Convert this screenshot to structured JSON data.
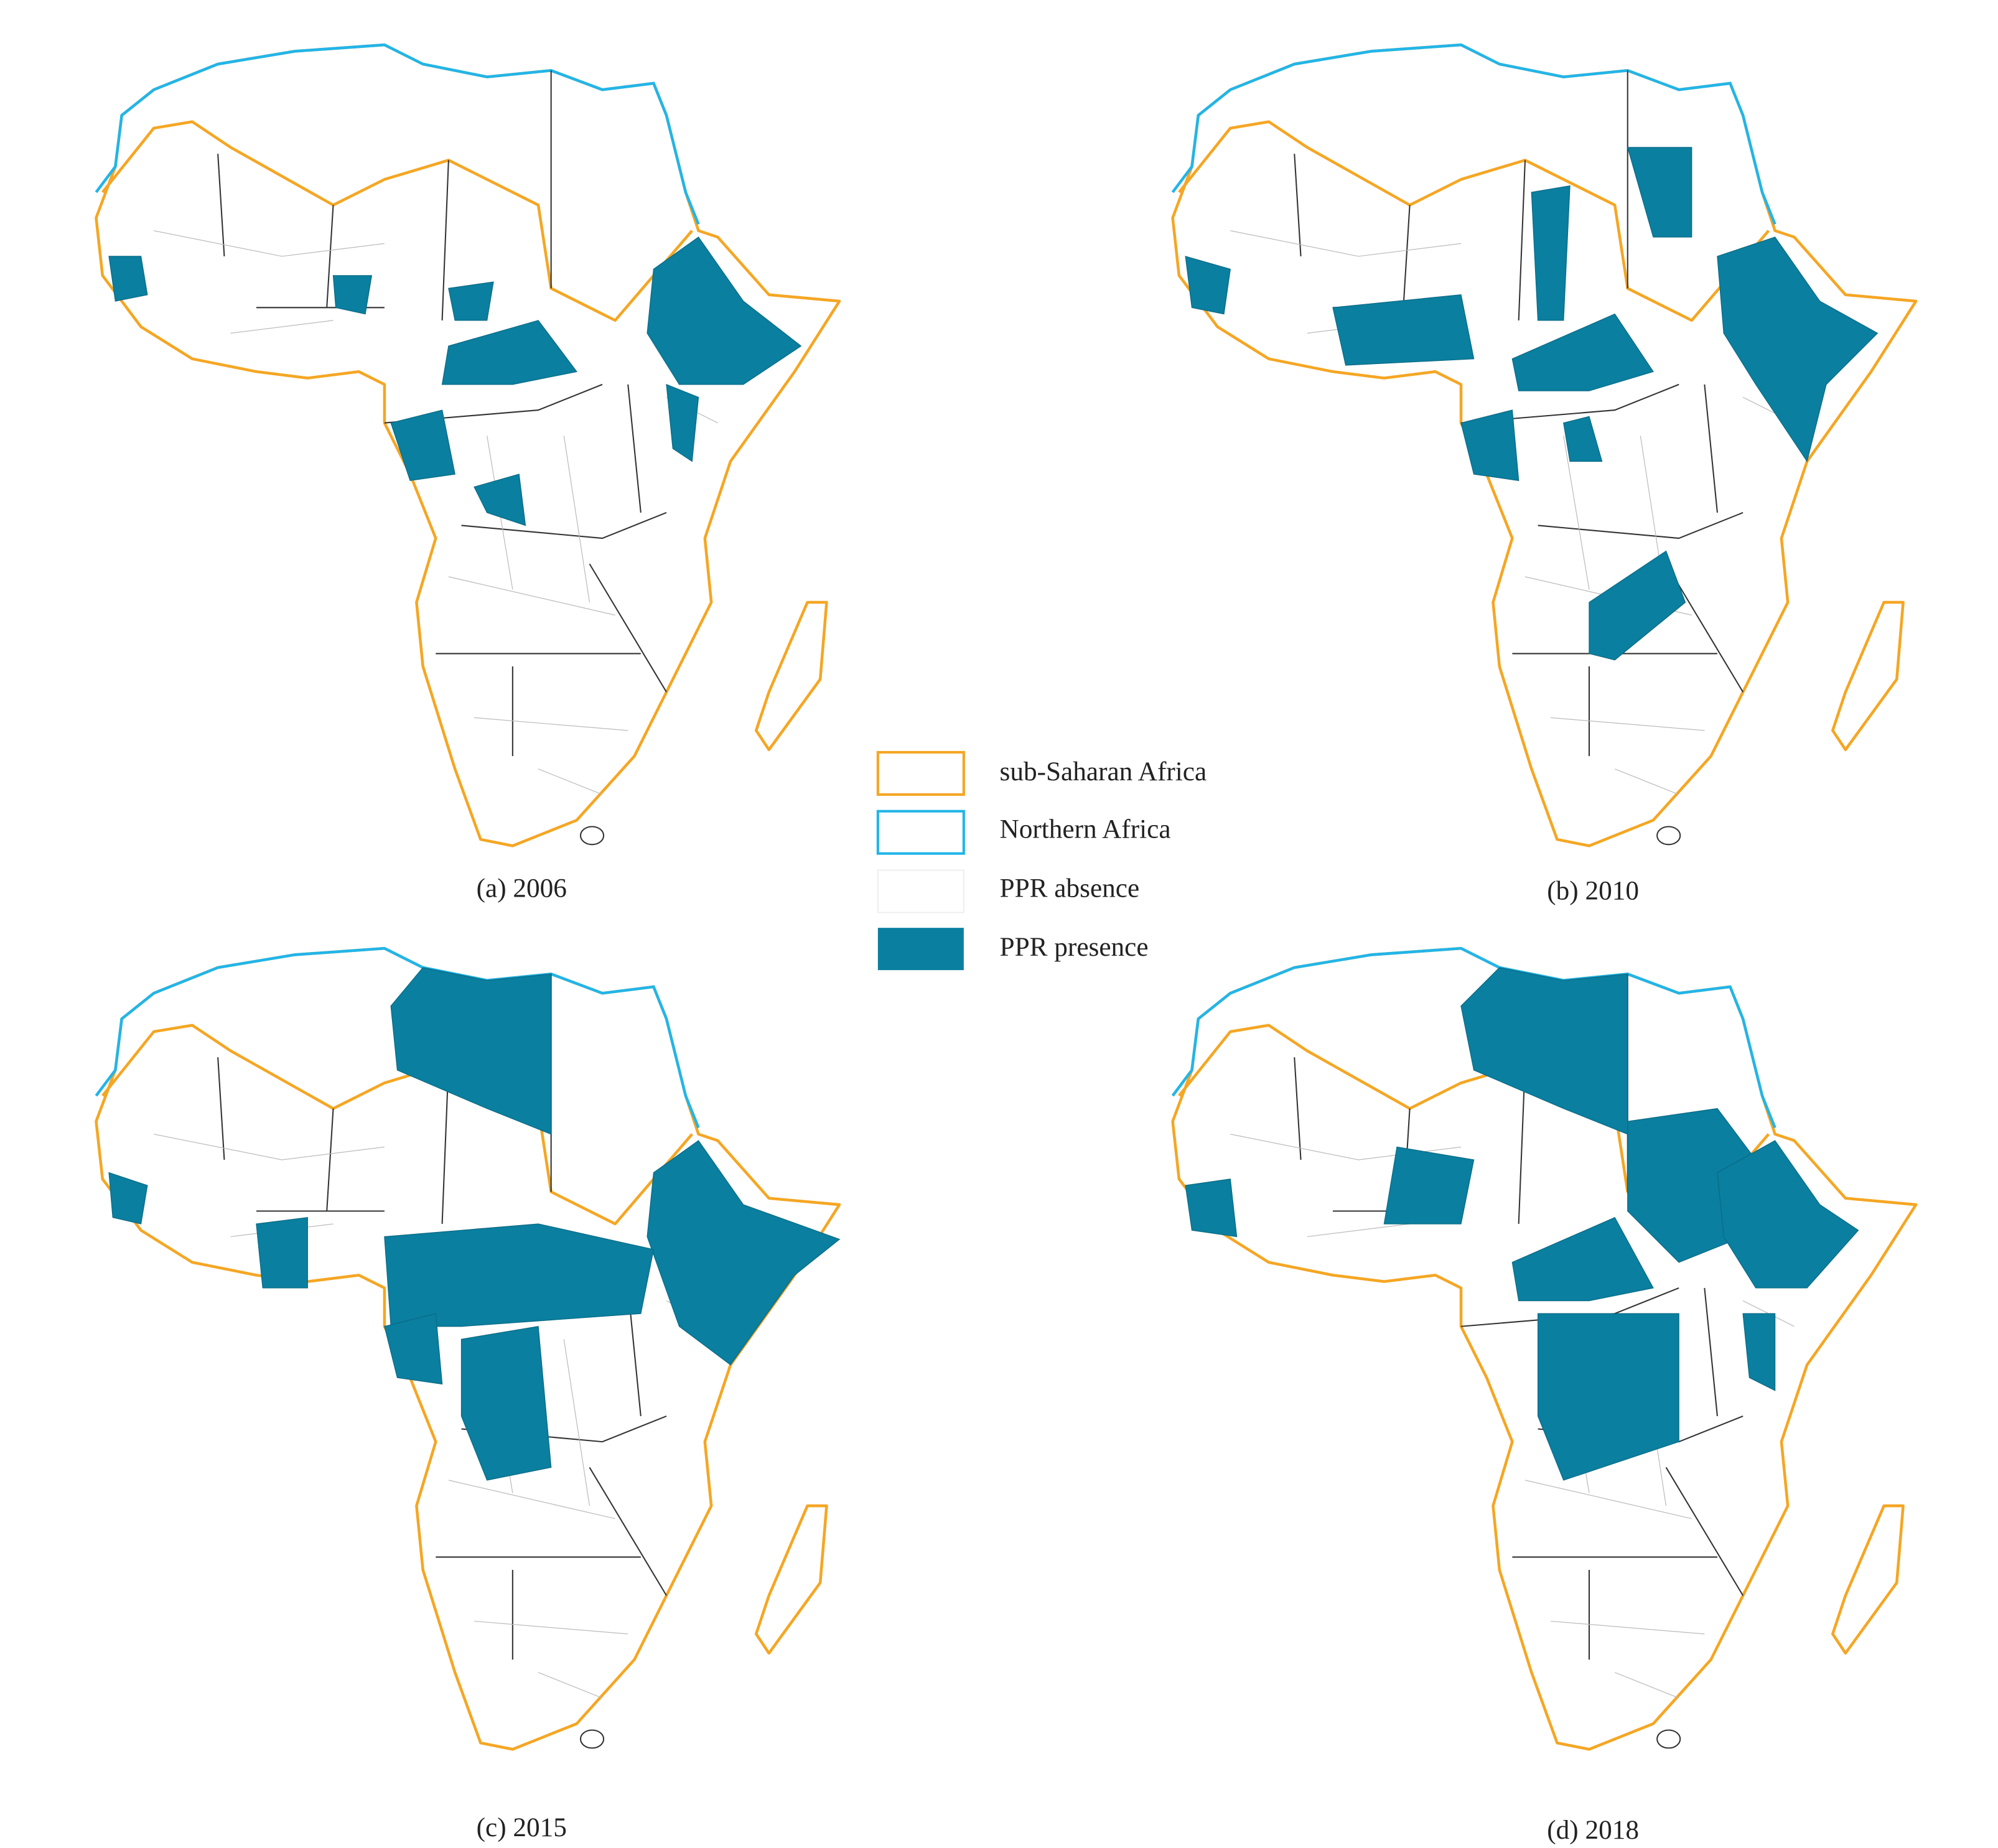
{
  "panels": [
    {
      "caption": "(a) 2006"
    },
    {
      "caption": "(b) 2010"
    },
    {
      "caption": "(c) 2015"
    },
    {
      "caption": "(d) 2018"
    }
  ],
  "legend": [
    {
      "label": "sub-Saharan Africa"
    },
    {
      "label": "Northern Africa"
    },
    {
      "label": "PPR absence"
    },
    {
      "label": "PPR presence"
    }
  ]
}
